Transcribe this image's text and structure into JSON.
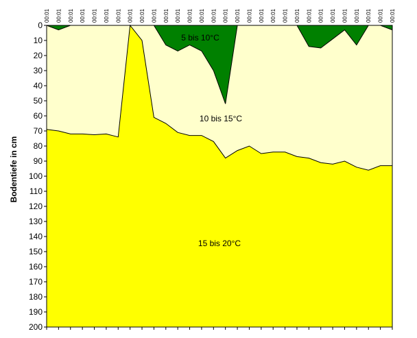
{
  "chart_data": {
    "type": "area",
    "ylabel": "Bodentiefe in cm",
    "ylim": [
      0,
      200
    ],
    "y_inverted": true,
    "y_ticks": [
      "0",
      "10",
      "20",
      "30",
      "40",
      "50",
      "60",
      "70",
      "80",
      "90",
      "100",
      "110",
      "120",
      "130",
      "140",
      "150",
      "160",
      "170",
      "180",
      "190",
      "200"
    ],
    "x_tick_label": "00:01",
    "x_count": 30,
    "zones": [
      {
        "label": "5 bis 10°C",
        "color": "#008000"
      },
      {
        "label": "10 bis 15°C",
        "color": "#FFFFCC"
      },
      {
        "label": "15 bis 20°C",
        "color": "#FFFF00"
      }
    ],
    "series": [
      {
        "values": [
          0,
          3,
          0,
          0,
          0,
          0,
          0,
          0,
          0,
          0,
          13,
          17,
          13,
          17,
          30,
          52,
          0,
          0,
          0,
          0,
          0,
          0,
          14,
          15,
          9,
          3,
          13,
          0,
          0,
          3
        ]
      },
      {
        "values": [
          69,
          70,
          72,
          72,
          72.5,
          72,
          74,
          0,
          10,
          61,
          65,
          71,
          73,
          73,
          77,
          88,
          83,
          80,
          85,
          84,
          84,
          87,
          88,
          91,
          92,
          90,
          94,
          96,
          93,
          93
        ]
      }
    ]
  }
}
